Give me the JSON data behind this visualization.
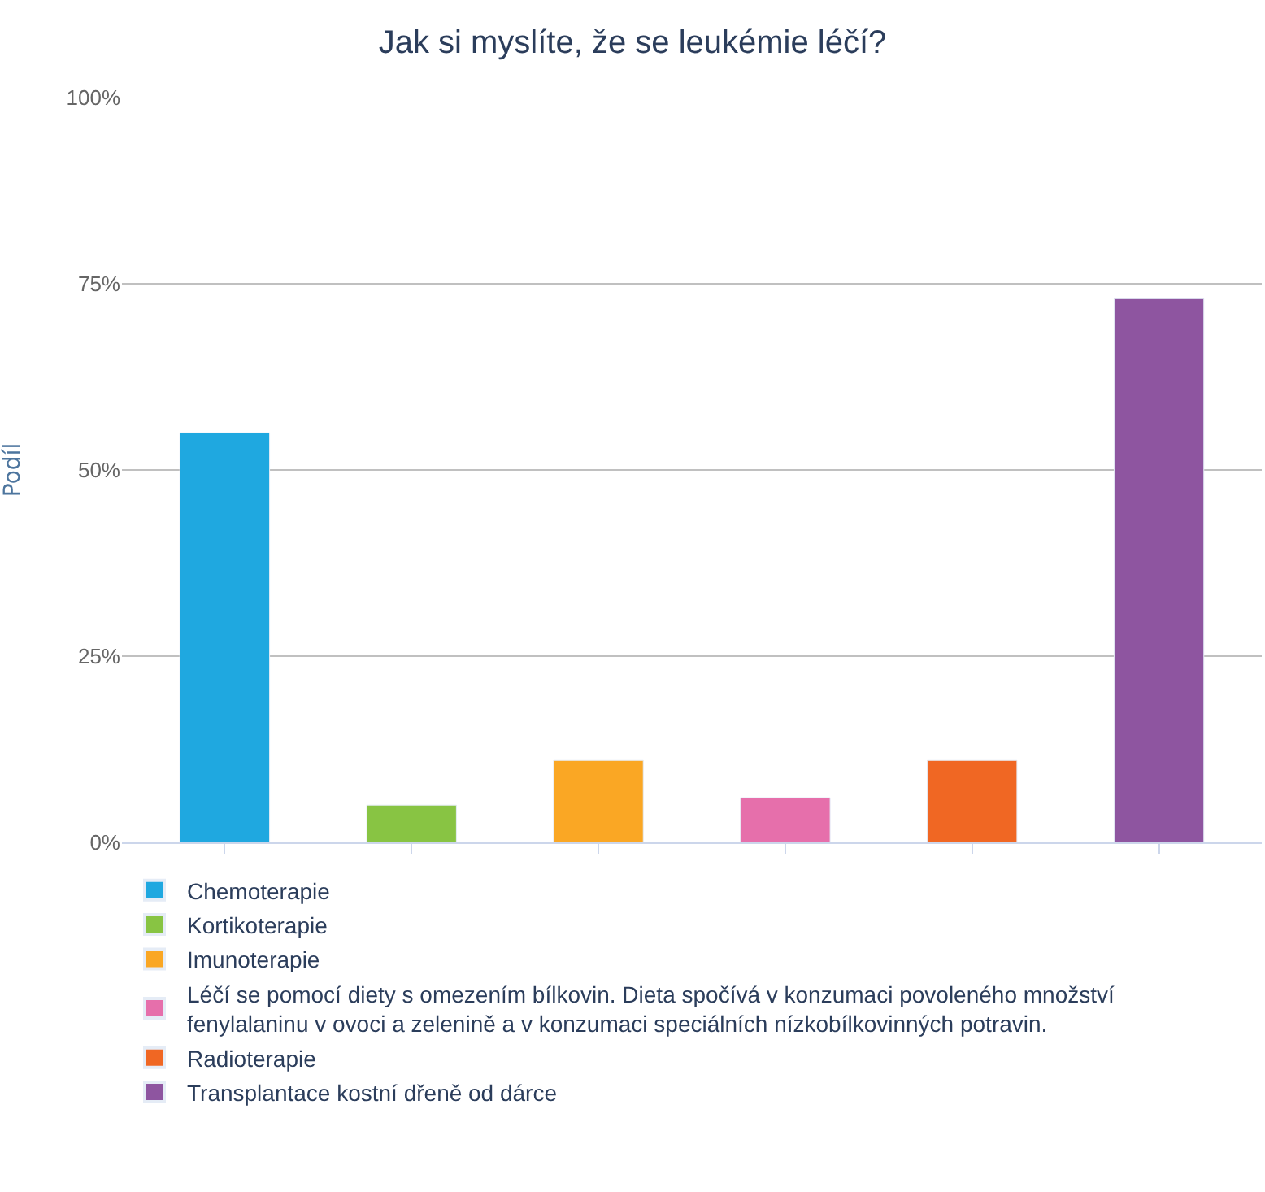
{
  "chart_data": {
    "type": "bar",
    "title": "Jak si myslíte, že se leukémie léčí?",
    "ylabel": "Podíl",
    "categories": [
      null,
      null,
      null,
      null,
      null,
      null
    ],
    "series": [
      {
        "name": "Chemoterapie",
        "color": "#1fa8e0",
        "values": [
          55,
          null,
          null,
          null,
          null,
          null
        ]
      },
      {
        "name": "Kortikoterapie",
        "color": "#88c443",
        "values": [
          null,
          5,
          null,
          null,
          null,
          null
        ]
      },
      {
        "name": "Imunoterapie",
        "color": "#faa724",
        "values": [
          null,
          null,
          11,
          null,
          null,
          null
        ]
      },
      {
        "name": "Léčí se pomocí diety s omezením bílkovin. Dieta spočívá v konzumaci povoleného množství fenylalaninu v ovoci a zelenině a v konzumaci speciálních nízkobílkovinných potravin.",
        "color": "#e66fab",
        "values": [
          null,
          null,
          null,
          6,
          null,
          null
        ]
      },
      {
        "name": "Radioterapie",
        "color": "#f06723",
        "values": [
          null,
          null,
          null,
          null,
          11,
          null
        ]
      },
      {
        "name": "Transplantace kostní dřeně od dárce",
        "color": "#8e55a0",
        "values": [
          null,
          null,
          null,
          null,
          null,
          73
        ]
      }
    ],
    "ylim": [
      0,
      100
    ],
    "yticks": [
      {
        "value": 0,
        "label": "0%"
      },
      {
        "value": 25,
        "label": "25%"
      },
      {
        "value": 50,
        "label": "50%"
      },
      {
        "value": 75,
        "label": "75%"
      },
      {
        "value": 100,
        "label": "100%"
      }
    ],
    "grid": "y",
    "legend": "bottom",
    "tick_labels": "y"
  }
}
